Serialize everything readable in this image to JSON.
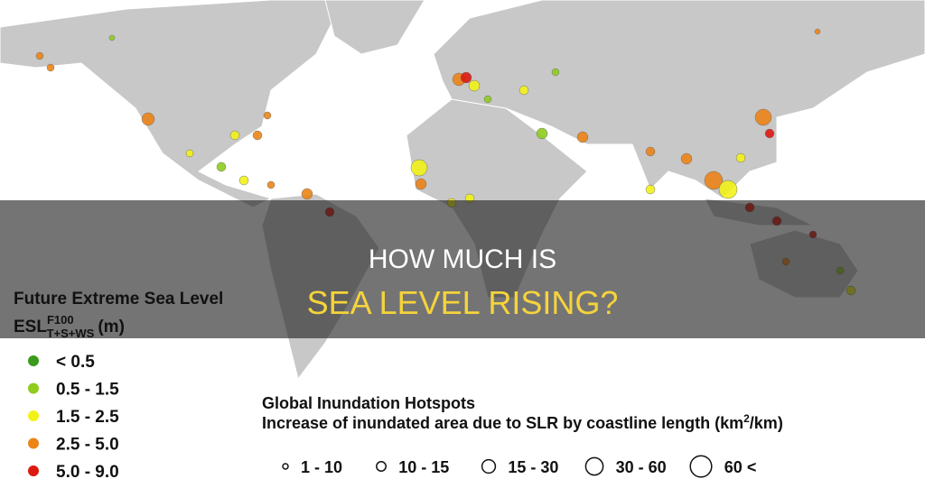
{
  "title": [
    "HOW MUCH IS",
    "SEA LEVEL RISING?"
  ],
  "legend": {
    "title": "Future Extreme Sea Level",
    "symbol": "ESL",
    "sup": "F100",
    "sub": "T+S+WS",
    "unit": "(m)",
    "items": [
      {
        "label": "< 0.5",
        "color": "#3c9a1c"
      },
      {
        "label": "0.5 - 1.5",
        "color": "#8fcc1e"
      },
      {
        "label": "1.5 - 2.5",
        "color": "#f2f21a"
      },
      {
        "label": "2.5 - 5.0",
        "color": "#ec8418"
      },
      {
        "label": "5.0 - 9.0",
        "color": "#dc1a10"
      }
    ]
  },
  "hotspots": {
    "title": "Global Inundation Hotspots",
    "subtitle": "Increase of inundated area due to SLR by coastline length (km",
    "sup": "2",
    "tail": "/km)",
    "sizes": [
      "1 - 10",
      "10 - 15",
      "15 - 30",
      "30 - 60",
      "60 <"
    ]
  }
}
